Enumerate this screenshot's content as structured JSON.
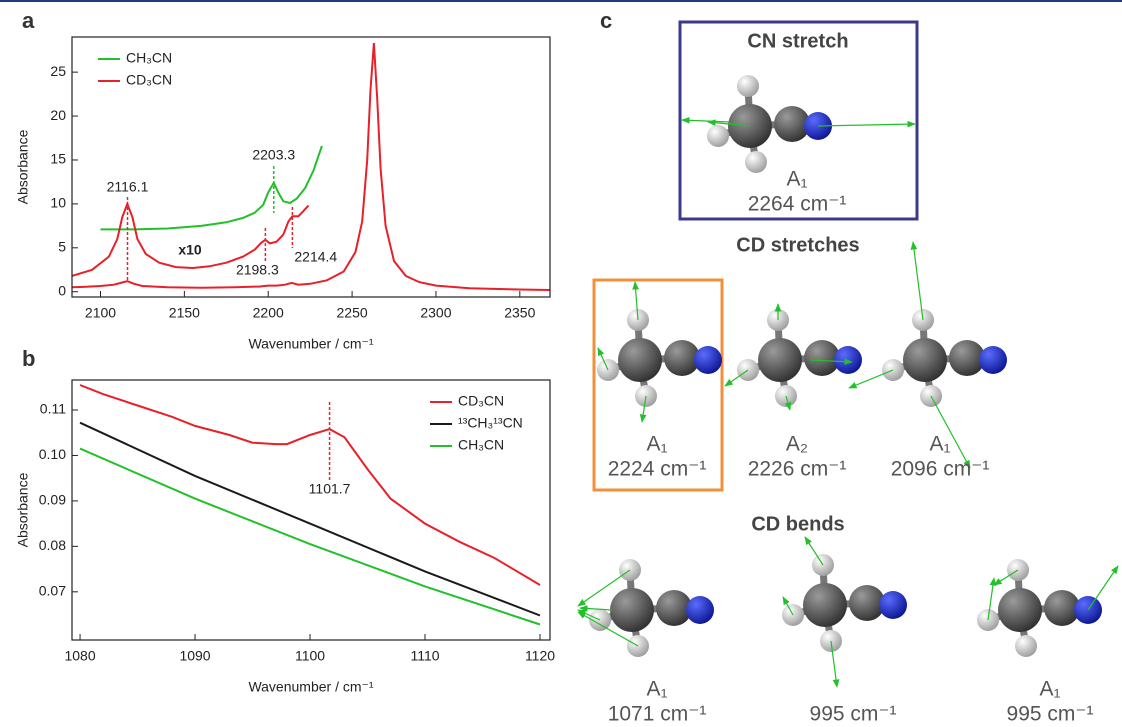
{
  "chart_data": [
    {
      "type": "line",
      "panel_label": "a",
      "x_label": "Wavenumber / cm⁻¹",
      "y_label": "Absorbance",
      "xlim": [
        2083,
        2368
      ],
      "xticks": [
        2100,
        2150,
        2200,
        2250,
        2300,
        2350
      ],
      "ylim": [
        -0.6,
        29
      ],
      "yticks": [
        0,
        5,
        10,
        15,
        20,
        25
      ],
      "legend": "upper left",
      "annotation": "x10",
      "series": [
        {
          "name": "CH₃CN",
          "color": "#22c02a",
          "x": [
            2100,
            2120,
            2140,
            2160,
            2175,
            2185,
            2192,
            2197,
            2200,
            2203.3,
            2206,
            2209,
            2213,
            2217,
            2222,
            2227,
            2232
          ],
          "values": [
            7.1,
            7.1,
            7.2,
            7.5,
            7.9,
            8.4,
            9,
            9.9,
            11.3,
            12.4,
            11.3,
            10.3,
            10.1,
            10.6,
            11.8,
            13.8,
            16.6
          ]
        },
        {
          "name": "CD₃CN",
          "color": "#e8202a",
          "x": [
            2083,
            2090,
            2100,
            2108,
            2112,
            2116,
            2120,
            2125,
            2140,
            2160,
            2180,
            2195,
            2200,
            2205,
            2210,
            2214,
            2218,
            2225,
            2235,
            2245,
            2252,
            2256,
            2259,
            2261,
            2263,
            2265,
            2267,
            2270,
            2275,
            2282,
            2290,
            2300,
            2320,
            2350,
            2368
          ],
          "values": [
            0.5,
            0.55,
            0.65,
            0.8,
            1,
            1.2,
            0.9,
            0.65,
            0.5,
            0.45,
            0.5,
            0.6,
            0.7,
            0.7,
            0.8,
            1,
            0.8,
            0.9,
            1.3,
            2.3,
            4.5,
            8,
            15,
            23,
            28.3,
            22,
            14,
            7.5,
            3.5,
            1.8,
            1.1,
            0.7,
            0.4,
            0.25,
            0.2
          ]
        },
        {
          "color": "#e8202a",
          "x": [
            2083,
            2095,
            2105,
            2110,
            2113,
            2116,
            2119,
            2122,
            2127,
            2135,
            2145,
            2155,
            2165,
            2175,
            2185,
            2192,
            2196,
            2198.3,
            2201,
            2205,
            2209,
            2212,
            2214.4,
            2218,
            2221,
            2224
          ],
          "values": [
            1.8,
            2.5,
            4,
            6,
            8.5,
            10,
            8.5,
            6,
            4.3,
            3.3,
            2.8,
            2.7,
            2.9,
            3.3,
            4,
            4.8,
            5.6,
            5.9,
            5.5,
            5.7,
            6.5,
            8,
            8.6,
            8.6,
            9.2,
            9.8
          ]
        }
      ],
      "peak_labels": [
        {
          "x": 2116.1,
          "color": "#e8202a"
        },
        {
          "x": 2203.3,
          "color": "#22c02a"
        },
        {
          "x": 2198.3,
          "color": "#e8202a"
        },
        {
          "x": 2214.4,
          "color": "#e8202a"
        }
      ]
    },
    {
      "type": "line",
      "panel_label": "b",
      "x_label": "Wavenumber / cm⁻¹",
      "y_label": "Absorbance",
      "xlim": [
        1079.3,
        1120.87
      ],
      "xticks": [
        1080,
        1090,
        1100,
        1110,
        1120
      ],
      "ylim": [
        0.0594,
        0.1166
      ],
      "yticks": [
        0.07,
        0.08,
        0.09,
        {
          "value": 0.1,
          "label": "0.10"
        },
        0.11
      ],
      "legend": "upper right",
      "series": [
        {
          "name": "CD₃CN",
          "color": "#e8202a",
          "x": [
            1080,
            1082,
            1085,
            1088,
            1090,
            1093,
            1095,
            1097,
            1098,
            1100,
            1101.7,
            1103,
            1105,
            1107,
            1110,
            1113,
            1116,
            1120
          ],
          "values": [
            0.1155,
            0.1135,
            0.111,
            0.1085,
            0.1065,
            0.1045,
            0.1028,
            0.1025,
            0.1025,
            0.1045,
            0.1058,
            0.104,
            0.097,
            0.0905,
            0.085,
            0.081,
            0.0775,
            0.0715
          ]
        },
        {
          "name": "¹³CH₃¹³CN",
          "color": "#1a1a1a",
          "x": [
            1080,
            1090,
            1100,
            1110,
            1120
          ],
          "values": [
            0.1072,
            0.0955,
            0.085,
            0.0745,
            0.0648
          ]
        },
        {
          "name": "CH₃CN",
          "color": "#22c02a",
          "x": [
            1080,
            1090,
            1100,
            1110,
            1120
          ],
          "values": [
            0.1015,
            0.0905,
            0.0805,
            0.0712,
            0.0628
          ]
        }
      ],
      "peak_labels": [
        {
          "x": 1101.7,
          "color": "#e8202a"
        }
      ]
    }
  ],
  "panel_c": {
    "label": "c",
    "cn_stretch": {
      "title": "CN stretch",
      "symmetry": "A₁",
      "frequency": "2264 cm⁻¹"
    },
    "cd_stretches": {
      "title": "CD stretches",
      "modes": [
        {
          "symmetry": "A₁",
          "frequency": "2224 cm⁻¹"
        },
        {
          "symmetry": "A₂",
          "frequency": "2226 cm⁻¹"
        },
        {
          "symmetry": "A₁",
          "frequency": "2096 cm⁻¹"
        }
      ]
    },
    "cd_bends": {
      "title": "CD bends",
      "modes": [
        {
          "symmetry": "A₁",
          "frequency": "1071 cm⁻¹"
        },
        {
          "frequency": "995 cm⁻¹"
        },
        {
          "symmetry": "A₁",
          "frequency": "995 cm⁻¹"
        }
      ]
    }
  }
}
